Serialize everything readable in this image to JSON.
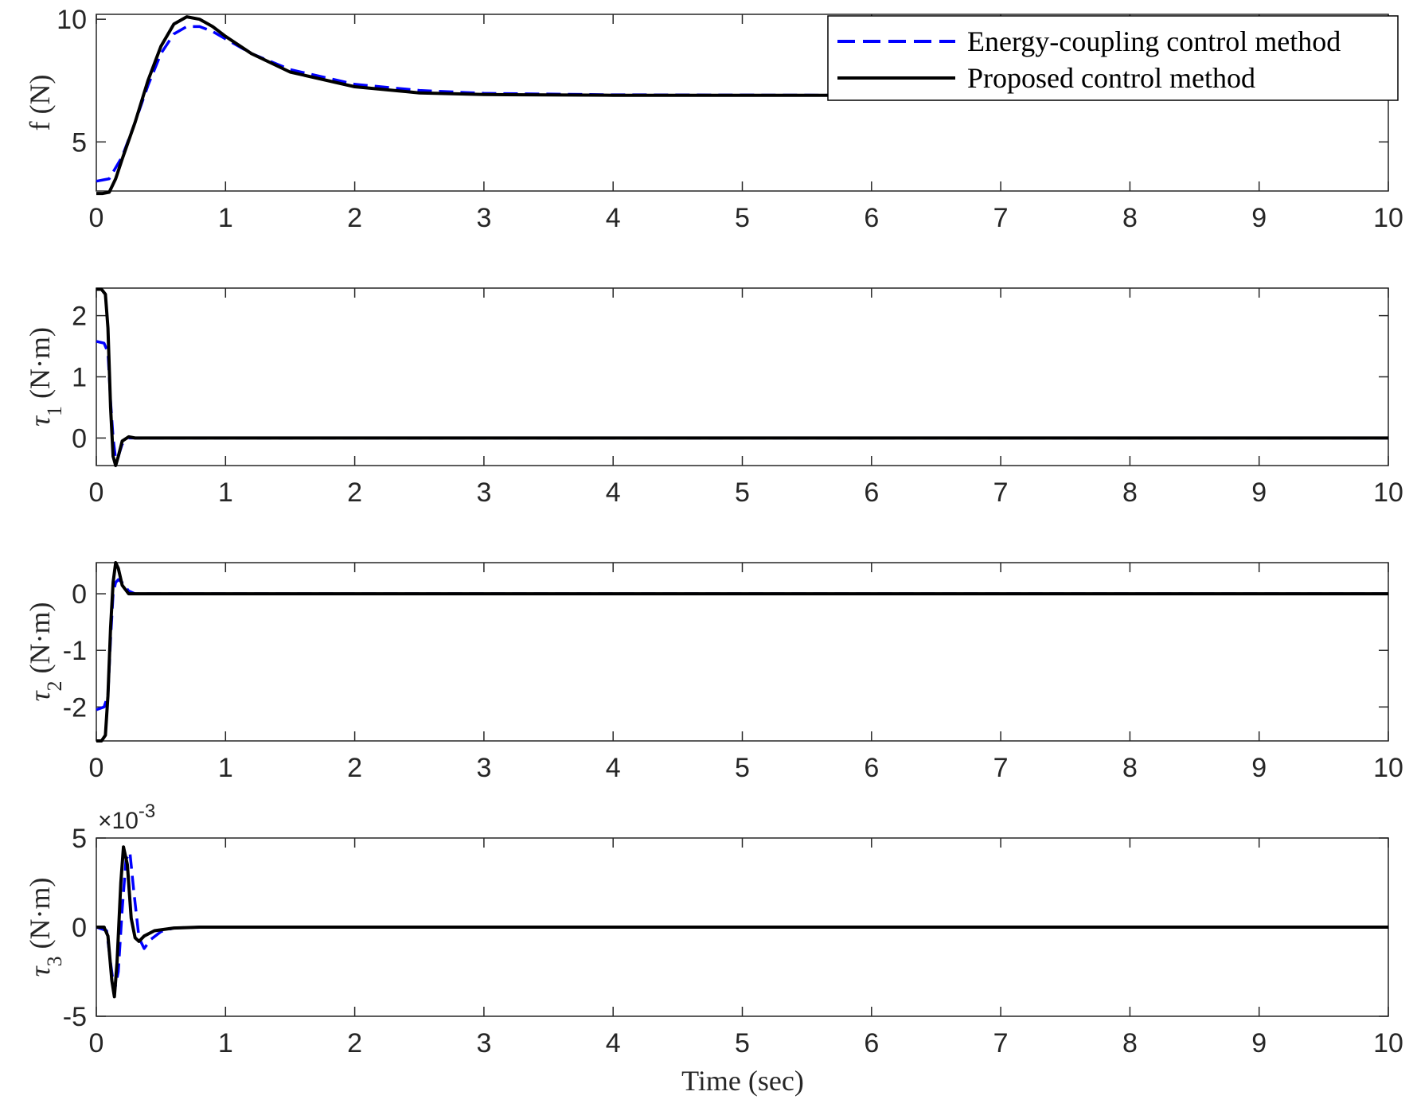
{
  "legend": {
    "entries": [
      {
        "label": "Energy-coupling control method",
        "color": "#0000ff",
        "dash": true
      },
      {
        "label": "Proposed control method",
        "color": "#000000",
        "dash": false
      }
    ]
  },
  "xlabel": "Time (sec)",
  "chart_data": [
    {
      "type": "line",
      "ylabel": "f (N)",
      "xlim": [
        0,
        10
      ],
      "ylim": [
        3,
        10.2
      ],
      "yticks": [
        5,
        10
      ],
      "xticks": [
        0,
        1,
        2,
        3,
        4,
        5,
        6,
        7,
        8,
        9,
        10
      ],
      "series": [
        {
          "name": "Energy-coupling control method",
          "color": "#0000ff",
          "dash": true,
          "x": [
            0,
            0.1,
            0.2,
            0.3,
            0.4,
            0.5,
            0.6,
            0.7,
            0.8,
            0.9,
            1.0,
            1.2,
            1.5,
            2,
            2.5,
            3,
            4,
            5,
            6,
            7,
            8,
            9,
            10
          ],
          "y": [
            3.4,
            3.5,
            4.4,
            5.8,
            7.3,
            8.6,
            9.4,
            9.7,
            9.7,
            9.5,
            9.2,
            8.6,
            7.95,
            7.35,
            7.1,
            6.98,
            6.92,
            6.91,
            6.9,
            6.9,
            6.9,
            6.9,
            6.9
          ]
        },
        {
          "name": "Proposed control method",
          "color": "#000000",
          "dash": false,
          "x": [
            0,
            0.05,
            0.1,
            0.15,
            0.2,
            0.3,
            0.4,
            0.5,
            0.6,
            0.7,
            0.8,
            0.9,
            1.0,
            1.2,
            1.5,
            2,
            2.5,
            3,
            4,
            5,
            6,
            7,
            8,
            9,
            10
          ],
          "y": [
            2.9,
            2.9,
            2.95,
            3.5,
            4.3,
            5.8,
            7.5,
            8.9,
            9.8,
            10.1,
            10.0,
            9.7,
            9.3,
            8.6,
            7.85,
            7.25,
            7.0,
            6.93,
            6.9,
            6.9,
            6.9,
            6.9,
            6.9,
            6.9,
            6.9
          ]
        }
      ]
    },
    {
      "type": "line",
      "ylabel": "τ1 (N·m)",
      "xlim": [
        0,
        10
      ],
      "ylim": [
        -0.45,
        2.45
      ],
      "yticks": [
        0,
        1,
        2
      ],
      "xticks": [
        0,
        1,
        2,
        3,
        4,
        5,
        6,
        7,
        8,
        9,
        10
      ],
      "series": [
        {
          "name": "Energy-coupling control method",
          "color": "#0000ff",
          "dash": true,
          "x": [
            0,
            0.06,
            0.09,
            0.11,
            0.13,
            0.15,
            0.17,
            0.2,
            0.25,
            0.3,
            0.5,
            1,
            10
          ],
          "y": [
            1.58,
            1.55,
            1.4,
            0.6,
            0.0,
            -0.35,
            -0.3,
            -0.1,
            0.0,
            0.0,
            0.0,
            0.0,
            0.0
          ]
        },
        {
          "name": "Proposed control method",
          "color": "#000000",
          "dash": false,
          "x": [
            0,
            0.04,
            0.07,
            0.09,
            0.11,
            0.13,
            0.15,
            0.17,
            0.2,
            0.25,
            0.3,
            0.5,
            1,
            10
          ],
          "y": [
            2.43,
            2.43,
            2.35,
            1.8,
            0.5,
            -0.3,
            -0.45,
            -0.3,
            -0.05,
            0.02,
            0.0,
            0.0,
            0.0,
            0.0
          ]
        }
      ]
    },
    {
      "type": "line",
      "ylabel": "τ2 (N·m)",
      "xlim": [
        0,
        10
      ],
      "ylim": [
        -2.6,
        0.55
      ],
      "yticks": [
        -2,
        -1,
        0
      ],
      "xticks": [
        0,
        1,
        2,
        3,
        4,
        5,
        6,
        7,
        8,
        9,
        10
      ],
      "series": [
        {
          "name": "Energy-coupling control method",
          "color": "#0000ff",
          "dash": true,
          "x": [
            0,
            0.06,
            0.09,
            0.11,
            0.13,
            0.15,
            0.17,
            0.2,
            0.25,
            0.3,
            0.5,
            1,
            10
          ],
          "y": [
            -2.05,
            -2.0,
            -1.8,
            -0.8,
            0.0,
            0.2,
            0.25,
            0.2,
            0.05,
            0.0,
            0.0,
            0.0,
            0.0
          ]
        },
        {
          "name": "Proposed control method",
          "color": "#000000",
          "dash": false,
          "x": [
            0,
            0.04,
            0.07,
            0.09,
            0.11,
            0.13,
            0.15,
            0.17,
            0.2,
            0.25,
            0.3,
            0.5,
            1,
            10
          ],
          "y": [
            -2.6,
            -2.6,
            -2.5,
            -1.8,
            -0.6,
            0.2,
            0.55,
            0.45,
            0.15,
            0.0,
            0.0,
            0.0,
            0.0,
            0.0
          ]
        }
      ]
    },
    {
      "type": "line",
      "ylabel": "τ3 (N·m)",
      "y_exponent": "×10-3",
      "xlim": [
        0,
        10
      ],
      "ylim": [
        -5,
        5
      ],
      "yticks": [
        -5,
        0,
        5
      ],
      "xticks": [
        0,
        1,
        2,
        3,
        4,
        5,
        6,
        7,
        8,
        9,
        10
      ],
      "series": [
        {
          "name": "Energy-coupling control method",
          "color": "#0000ff",
          "dash": true,
          "x": [
            0,
            0.08,
            0.11,
            0.14,
            0.17,
            0.2,
            0.23,
            0.26,
            0.29,
            0.33,
            0.37,
            0.42,
            0.5,
            0.6,
            0.8,
            1,
            10
          ],
          "y": [
            0,
            -0.2,
            -2.0,
            -3.6,
            -2.5,
            1.0,
            3.8,
            4.2,
            2.0,
            -0.6,
            -1.2,
            -0.7,
            -0.25,
            -0.05,
            0,
            0,
            0
          ]
        },
        {
          "name": "Proposed control method",
          "color": "#000000",
          "dash": false,
          "x": [
            0,
            0.06,
            0.09,
            0.12,
            0.14,
            0.16,
            0.19,
            0.21,
            0.24,
            0.27,
            0.3,
            0.33,
            0.37,
            0.45,
            0.6,
            0.8,
            1,
            10
          ],
          "y": [
            0,
            0,
            -0.5,
            -3.0,
            -3.9,
            -2.0,
            2.5,
            4.5,
            3.5,
            0.5,
            -0.6,
            -0.8,
            -0.5,
            -0.2,
            -0.05,
            0,
            0,
            0
          ]
        }
      ]
    }
  ]
}
